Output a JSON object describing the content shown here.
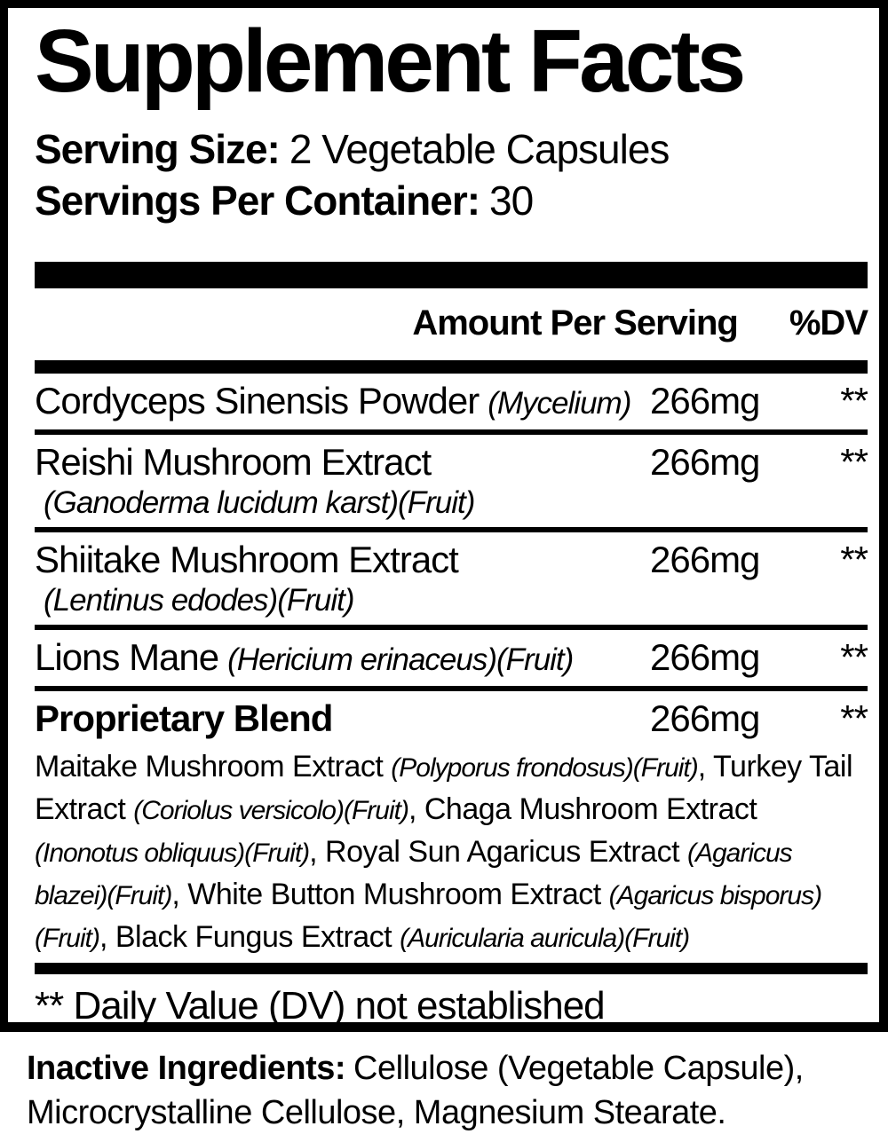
{
  "title": "Supplement Facts",
  "serving": {
    "size_label": "Serving Size:",
    "size_value": "2 Vegetable Capsules",
    "container_label": "Servings Per Container:",
    "container_value": "30"
  },
  "table": {
    "header": {
      "amount": "Amount Per Serving",
      "dv": "%DV"
    },
    "rows": [
      {
        "name": "Cordyceps Sinensis Powder",
        "latin": "(Mycelium)",
        "sub": "",
        "amount": "266mg",
        "dv": "**",
        "bold": false
      },
      {
        "name": "Reishi Mushroom Extract",
        "latin": "",
        "sub": "(Ganoderma lucidum karst)(Fruit)",
        "amount": "266mg",
        "dv": "**",
        "bold": false
      },
      {
        "name": "Shiitake Mushroom Extract",
        "latin": "",
        "sub": "(Lentinus edodes)(Fruit)",
        "amount": "266mg",
        "dv": "**",
        "bold": false
      },
      {
        "name": "Lions Mane",
        "latin": "(Hericium erinaceus)(Fruit)",
        "sub": "",
        "amount": "266mg",
        "dv": "**",
        "bold": false
      },
      {
        "name": "Proprietary Blend",
        "latin": "",
        "sub": "",
        "amount": "266mg",
        "dv": "**",
        "bold": true
      }
    ],
    "blend_segments": [
      {
        "text": "Maitake Mushroom Extract ",
        "italic": false
      },
      {
        "text": "(Polyporus frondosus)(Fruit)",
        "italic": true
      },
      {
        "text": ", Turkey Tail Extract ",
        "italic": false
      },
      {
        "text": "(Coriolus versicolo)(Fruit)",
        "italic": true
      },
      {
        "text": ", Chaga Mushroom Extract ",
        "italic": false
      },
      {
        "text": "(Inonotus obliquus)(Fruit)",
        "italic": true
      },
      {
        "text": ", Royal Sun Agaricus Extract ",
        "italic": false
      },
      {
        "text": "(Agaricus blazei)(Fruit)",
        "italic": true
      },
      {
        "text": ", White Button Mushroom Extract ",
        "italic": false
      },
      {
        "text": "(Agaricus bisporus)(Fruit)",
        "italic": true
      },
      {
        "text": ", Black Fungus Extract ",
        "italic": false
      },
      {
        "text": "(Auricularia auricula)(Fruit)",
        "italic": true
      }
    ]
  },
  "footnote": "** Daily Value (DV) not established",
  "inactive": {
    "label": "Inactive Ingredients:",
    "value": "Cellulose (Vegetable Capsule), Microcrystalline Cellulose, Magnesium Stearate."
  },
  "colors": {
    "ink": "#000000",
    "paper": "#ffffff"
  }
}
